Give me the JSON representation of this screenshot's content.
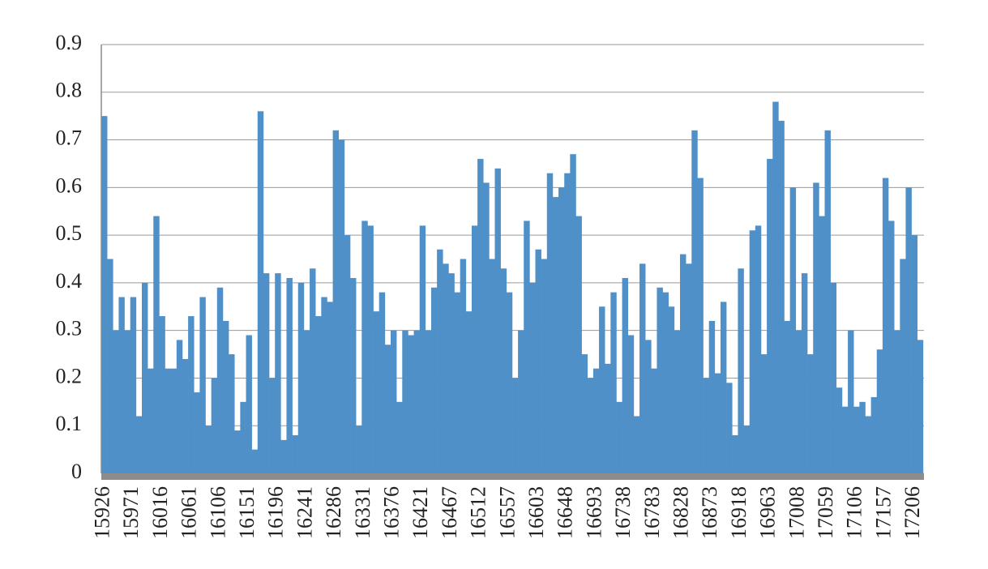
{
  "chart_data": {
    "type": "bar",
    "color": "#5090c8",
    "grid": true,
    "ylim": [
      0,
      0.9
    ],
    "yticks": [
      0,
      0.1,
      0.2,
      0.3,
      0.4,
      0.5,
      0.6,
      0.7,
      0.8,
      0.9
    ],
    "categories": [
      "15926",
      null,
      null,
      null,
      null,
      "15971",
      null,
      null,
      null,
      null,
      "16016",
      null,
      null,
      null,
      null,
      "16061",
      null,
      null,
      null,
      null,
      "16106",
      null,
      null,
      null,
      null,
      "16151",
      null,
      null,
      null,
      null,
      "16196",
      null,
      null,
      null,
      null,
      "16241",
      null,
      null,
      null,
      null,
      "16286",
      null,
      null,
      null,
      null,
      "16331",
      null,
      null,
      null,
      null,
      "16376",
      null,
      null,
      null,
      null,
      "16421",
      null,
      null,
      null,
      null,
      "16467",
      null,
      null,
      null,
      null,
      "16512",
      null,
      null,
      null,
      null,
      "16557",
      null,
      null,
      null,
      null,
      "16603",
      null,
      null,
      null,
      null,
      "16648",
      null,
      null,
      null,
      null,
      "16693",
      null,
      null,
      null,
      null,
      "16738",
      null,
      null,
      null,
      null,
      "16783",
      null,
      null,
      null,
      null,
      "16828",
      null,
      null,
      null,
      null,
      "16873",
      null,
      null,
      null,
      null,
      "16918",
      null,
      null,
      null,
      null,
      "16963",
      null,
      null,
      null,
      null,
      "17008",
      null,
      null,
      null,
      null,
      "17059",
      null,
      null,
      null,
      null,
      "17106",
      null,
      null,
      null,
      null,
      "17157",
      null,
      null,
      null,
      null,
      "17206",
      null
    ],
    "values": [
      0.75,
      0.45,
      0.3,
      0.37,
      0.3,
      0.37,
      0.12,
      0.4,
      0.22,
      0.54,
      0.33,
      0.22,
      0.22,
      0.28,
      0.24,
      0.33,
      0.17,
      0.37,
      0.1,
      0.2,
      0.39,
      0.32,
      0.25,
      0.09,
      0.15,
      0.29,
      0.05,
      0.76,
      0.42,
      0.2,
      0.42,
      0.07,
      0.41,
      0.08,
      0.4,
      0.3,
      0.43,
      0.33,
      0.37,
      0.36,
      0.72,
      0.7,
      0.5,
      0.41,
      0.1,
      0.53,
      0.52,
      0.34,
      0.38,
      0.27,
      0.3,
      0.15,
      0.3,
      0.29,
      0.3,
      0.52,
      0.3,
      0.39,
      0.47,
      0.44,
      0.42,
      0.38,
      0.45,
      0.34,
      0.52,
      0.66,
      0.61,
      0.45,
      0.64,
      0.43,
      0.38,
      0.2,
      0.3,
      0.53,
      0.4,
      0.47,
      0.45,
      0.63,
      0.58,
      0.6,
      0.63,
      0.67,
      0.54,
      0.25,
      0.2,
      0.22,
      0.35,
      0.23,
      0.38,
      0.15,
      0.41,
      0.29,
      0.12,
      0.44,
      0.28,
      0.22,
      0.39,
      0.38,
      0.35,
      0.3,
      0.46,
      0.44,
      0.72,
      0.62,
      0.2,
      0.32,
      0.21,
      0.36,
      0.19,
      0.08,
      0.43,
      0.1,
      0.51,
      0.52,
      0.25,
      0.66,
      0.78,
      0.74,
      0.32,
      0.6,
      0.3,
      0.42,
      0.25,
      0.61,
      0.54,
      0.72,
      0.4,
      0.18,
      0.14,
      0.3,
      0.14,
      0.15,
      0.12,
      0.16,
      0.26,
      0.62,
      0.53,
      0.3,
      0.45,
      0.6,
      0.5,
      0.28
    ]
  }
}
